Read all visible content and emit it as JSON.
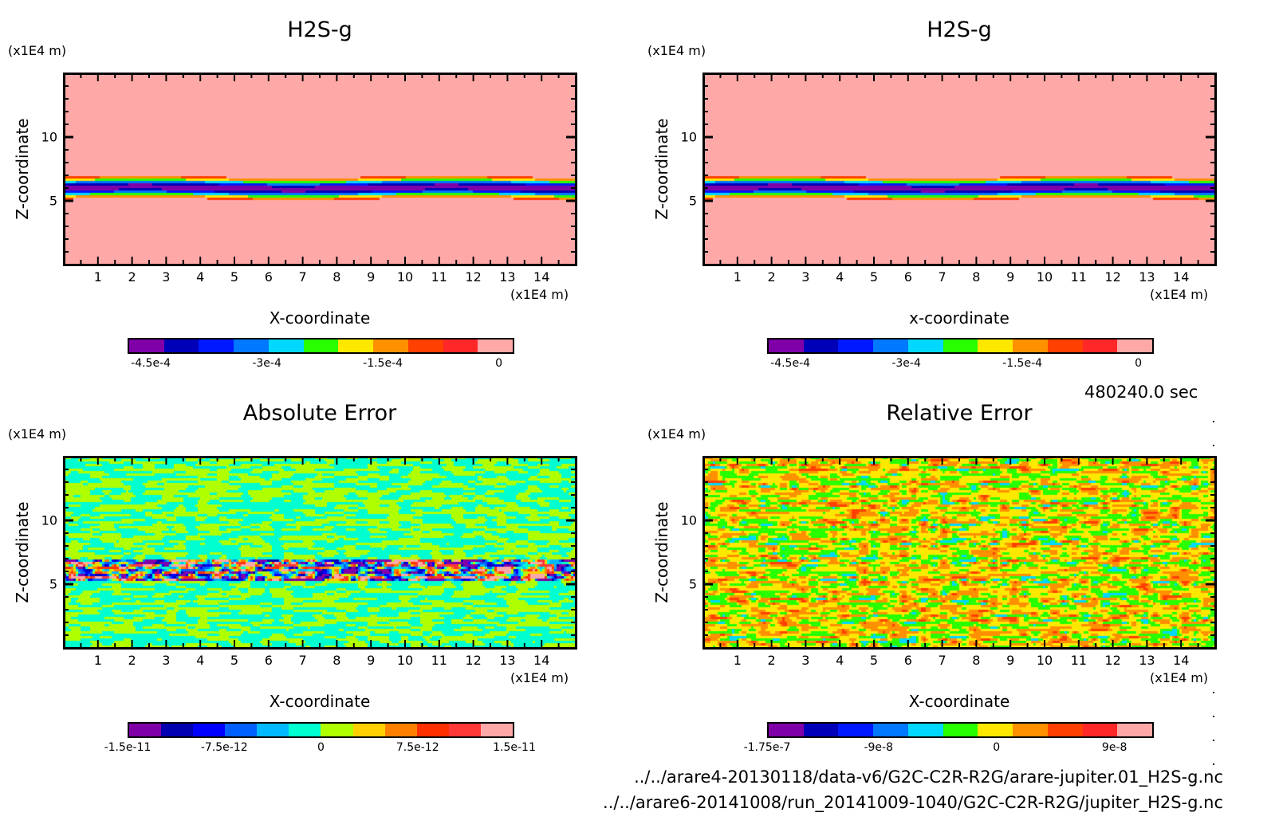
{
  "figure": {
    "time_label": "480240.0 sec",
    "files": [
      "../../arare4-20130118/data-v6/G2C-C2R-R2G/arare-jupiter.01_H2S-g.nc",
      "../../arare6-20141008/run_20141009-1040/G2C-C2R-R2G/jupiter_H2S-g.nc"
    ]
  },
  "chart_data": [
    {
      "type": "heatmap",
      "id": "top-left",
      "title": "H2S-g",
      "xlabel": "X-coordinate",
      "ylabel": "Z-coordinate",
      "x_unit": "(x1E4 m)",
      "y_unit": "(x1E4 m)",
      "xlim": [
        0,
        15
      ],
      "ylim": [
        0,
        15
      ],
      "xticks": [
        "1",
        "2",
        "3",
        "4",
        "5",
        "6",
        "7",
        "8",
        "9",
        "10",
        "11",
        "12",
        "13",
        "14"
      ],
      "yticks": [
        "5",
        "10"
      ],
      "colorbar": {
        "colors": [
          "#7f00a8",
          "#0000b8",
          "#0018ff",
          "#0078ff",
          "#00d8ff",
          "#28ff00",
          "#ffe800",
          "#ff9000",
          "#ff4000",
          "#ff2828",
          "#ffa8a8"
        ],
        "tick_labels": [
          "-4.5e-4",
          "-3e-4",
          "-1.5e-4",
          "0"
        ],
        "tick_values": [
          -0.00045,
          -0.0003,
          -0.00015,
          0
        ],
        "range": [
          -0.00048,
          2e-05
        ]
      },
      "field_description": "Horizontal layered field: mostly near 0 (pink/red bands), a strong negative band (down to about -4.5e-4) centered near z=6, red dome features near z=0-2"
    },
    {
      "type": "heatmap",
      "id": "top-right",
      "title": "H2S-g",
      "xlabel": "x-coordinate",
      "ylabel": "Z-coordinate",
      "x_unit": "(x1E4 m)",
      "y_unit": "(x1E4 m)",
      "xlim": [
        0,
        15
      ],
      "ylim": [
        0,
        15
      ],
      "xticks": [
        "1",
        "2",
        "3",
        "4",
        "5",
        "6",
        "7",
        "8",
        "9",
        "10",
        "11",
        "12",
        "13",
        "14"
      ],
      "yticks": [
        "5",
        "10"
      ],
      "colorbar": {
        "colors": [
          "#7f00a8",
          "#0000b8",
          "#0018ff",
          "#0078ff",
          "#00d8ff",
          "#28ff00",
          "#ffe800",
          "#ff9000",
          "#ff4000",
          "#ff2828",
          "#ffa8a8"
        ],
        "tick_labels": [
          "-4.5e-4",
          "-3e-4",
          "-1.5e-4",
          "0"
        ],
        "tick_values": [
          -0.00045,
          -0.0003,
          -0.00015,
          0
        ],
        "range": [
          -0.00048,
          2e-05
        ]
      },
      "field_description": "Same as top-left field (second dataset)"
    },
    {
      "type": "heatmap",
      "id": "bottom-left",
      "title": "Absolute Error",
      "xlabel": "X-coordinate",
      "ylabel": "Z-coordinate",
      "x_unit": "(x1E4 m)",
      "y_unit": "(x1E4 m)",
      "xlim": [
        0,
        15
      ],
      "ylim": [
        0,
        15
      ],
      "xticks": [
        "1",
        "2",
        "3",
        "4",
        "5",
        "6",
        "7",
        "8",
        "9",
        "10",
        "11",
        "12",
        "13",
        "14"
      ],
      "yticks": [
        "5",
        "10"
      ],
      "colorbar": {
        "colors": [
          "#8000a8",
          "#0000b0",
          "#0000ff",
          "#0060ff",
          "#00b8ff",
          "#00ffd0",
          "#b0ff00",
          "#ffd000",
          "#ff8000",
          "#ff3000",
          "#ff3838",
          "#ffa8a8"
        ],
        "tick_labels": [
          "-1.5e-11",
          "-7.5e-12",
          "0",
          "7.5e-12",
          "1.5e-11"
        ],
        "tick_values": [
          -1.5e-11,
          -7.5e-12,
          0,
          7.5e-12,
          1.5e-11
        ],
        "range": [
          -1.5e-11,
          1.5e-11
        ]
      },
      "field_description": "Noise near 0 (aqua / yellow-green) everywhere; strong +/- errors in band z=5.3-6.8"
    },
    {
      "type": "heatmap",
      "id": "bottom-right",
      "title": "Relative Error",
      "xlabel": "X-coordinate",
      "ylabel": "Z-coordinate",
      "x_unit": "(x1E4 m)",
      "y_unit": "(x1E4 m)",
      "xlim": [
        0,
        15
      ],
      "ylim": [
        0,
        15
      ],
      "xticks": [
        "1",
        "2",
        "3",
        "4",
        "5",
        "6",
        "7",
        "8",
        "9",
        "10",
        "11",
        "12",
        "13",
        "14"
      ],
      "yticks": [
        "5",
        "10"
      ],
      "colorbar": {
        "colors": [
          "#8000a8",
          "#0000b8",
          "#0018ff",
          "#0078ff",
          "#00d8ff",
          "#28ff00",
          "#ffe800",
          "#ff9000",
          "#ff4000",
          "#ff2828",
          "#ffa8a8"
        ],
        "tick_labels": [
          "-1.75e-7",
          "-9e-8",
          "0",
          "9e-8"
        ],
        "tick_values": [
          -1.75e-07,
          -9e-08,
          0,
          9e-08
        ],
        "range": [
          -1.75e-07,
          1.2e-07
        ]
      },
      "field_description": "Noise near 0 (green / yellow) with occasional cyan and orange patches"
    }
  ]
}
